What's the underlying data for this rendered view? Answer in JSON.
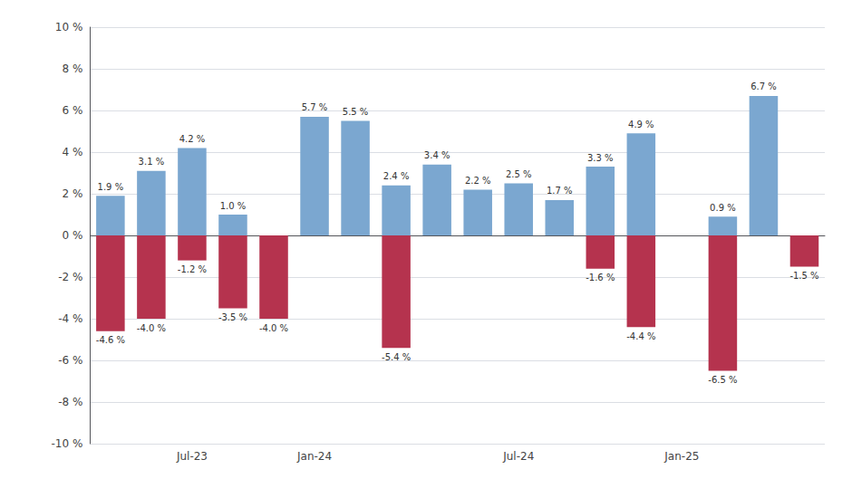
{
  "chart_data": {
    "type": "bar",
    "categories": [
      null,
      null,
      "Jul-23",
      null,
      null,
      "Jan-24",
      null,
      null,
      null,
      null,
      "Jul-24",
      null,
      null,
      null,
      "Jan-25",
      null,
      null,
      null
    ],
    "series": [
      {
        "color": "#7ba7d0",
        "values": [
          1.9,
          3.1,
          4.2,
          1.0,
          null,
          5.7,
          5.5,
          2.4,
          3.4,
          2.2,
          2.5,
          1.7,
          3.3,
          4.9,
          null,
          0.9,
          6.7,
          null
        ],
        "value_labels": [
          "1.9 %",
          "3.1 %",
          "4.2 %",
          "1.0 %",
          null,
          "5.7 %",
          "5.5 %",
          "2.4 %",
          "3.4 %",
          "2.2 %",
          "2.5 %",
          "1.7 %",
          "3.3 %",
          "4.9 %",
          null,
          "0.9 %",
          "6.7 %",
          null
        ]
      },
      {
        "color": "#b5334e",
        "values": [
          -4.6,
          -4.0,
          -1.2,
          -3.5,
          -4.0,
          null,
          null,
          -5.4,
          null,
          null,
          null,
          null,
          -1.6,
          -4.4,
          null,
          -6.5,
          null,
          -1.5
        ],
        "value_labels": [
          "-4.6 %",
          "-4.0 %",
          "-1.2 %",
          "-3.5 %",
          "-4.0 %",
          null,
          null,
          "-5.4 %",
          null,
          null,
          null,
          null,
          "-1.6 %",
          "-4.4 %",
          null,
          "-6.5 %",
          null,
          "-1.5 %"
        ]
      }
    ],
    "ylim": [
      -10,
      10
    ],
    "yticks": [
      {
        "value": -10,
        "label": "-10 %"
      },
      {
        "value": -8,
        "label": "-8 %"
      },
      {
        "value": -6,
        "label": "-6 %"
      },
      {
        "value": -4,
        "label": "-4 %"
      },
      {
        "value": -2,
        "label": "-2 %"
      },
      {
        "value": 0,
        "label": "0 %"
      },
      {
        "value": 2,
        "label": "2 %"
      },
      {
        "value": 4,
        "label": "4 %"
      },
      {
        "value": 6,
        "label": "6 %"
      },
      {
        "value": 8,
        "label": "8 %"
      },
      {
        "value": 10,
        "label": "10 %"
      }
    ],
    "grid": true,
    "data_labels": true
  }
}
